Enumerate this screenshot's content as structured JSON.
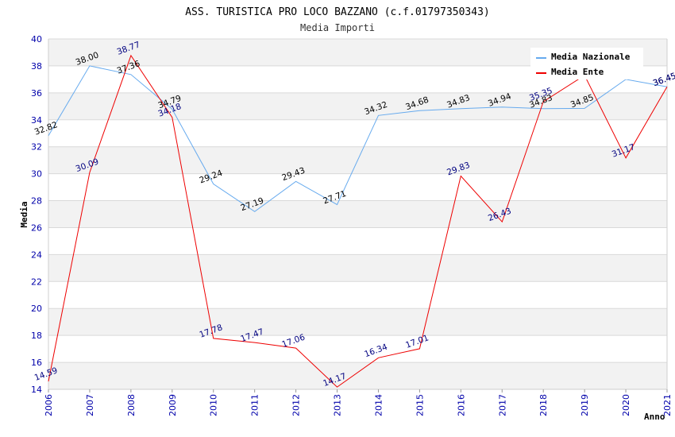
{
  "chart_data": {
    "type": "line",
    "title": "ASS. TURISTICA PRO LOCO BAZZANO (c.f.01797350343)",
    "subtitle": "Media Importi",
    "xlabel": "Anno",
    "ylabel": "Media",
    "ylim": [
      14,
      40
    ],
    "yticks": [
      14,
      16,
      18,
      20,
      22,
      24,
      26,
      28,
      30,
      32,
      34,
      36,
      38,
      40
    ],
    "x": [
      "2006",
      "2007",
      "2008",
      "2009",
      "2010",
      "2011",
      "2012",
      "2013",
      "2014",
      "2015",
      "2016",
      "2017",
      "2018",
      "2019",
      "2020",
      "2021"
    ],
    "grid": true,
    "legend_position": "top-right",
    "series": [
      {
        "name": "Media Nazionale",
        "color": "#66aaee",
        "values": [
          32.82,
          38.0,
          37.36,
          34.79,
          29.24,
          27.19,
          29.43,
          27.71,
          34.32,
          34.68,
          34.83,
          34.94,
          34.83,
          34.85,
          37.0,
          36.45
        ],
        "labels": [
          "32.82",
          "38.00",
          "37.36",
          "34.79",
          "29.24",
          "27.19",
          "29.43",
          "27.71",
          "34.32",
          "34.68",
          "34.83",
          "34.94",
          "34.83",
          "34.85",
          "",
          "36.45"
        ]
      },
      {
        "name": "Media Ente",
        "color": "#ee0000",
        "values": [
          14.59,
          30.09,
          38.77,
          34.18,
          17.78,
          17.47,
          17.06,
          14.17,
          16.34,
          17.01,
          29.83,
          26.43,
          35.35,
          37.3,
          31.17,
          36.45
        ],
        "labels": [
          "14.59",
          "30.09",
          "38.77",
          "34.18",
          "17.78",
          "17.47",
          "17.06",
          "14.17",
          "16.34",
          "17.01",
          "29.83",
          "26.43",
          "35.35",
          "",
          "31.17",
          "36.45"
        ]
      }
    ]
  }
}
